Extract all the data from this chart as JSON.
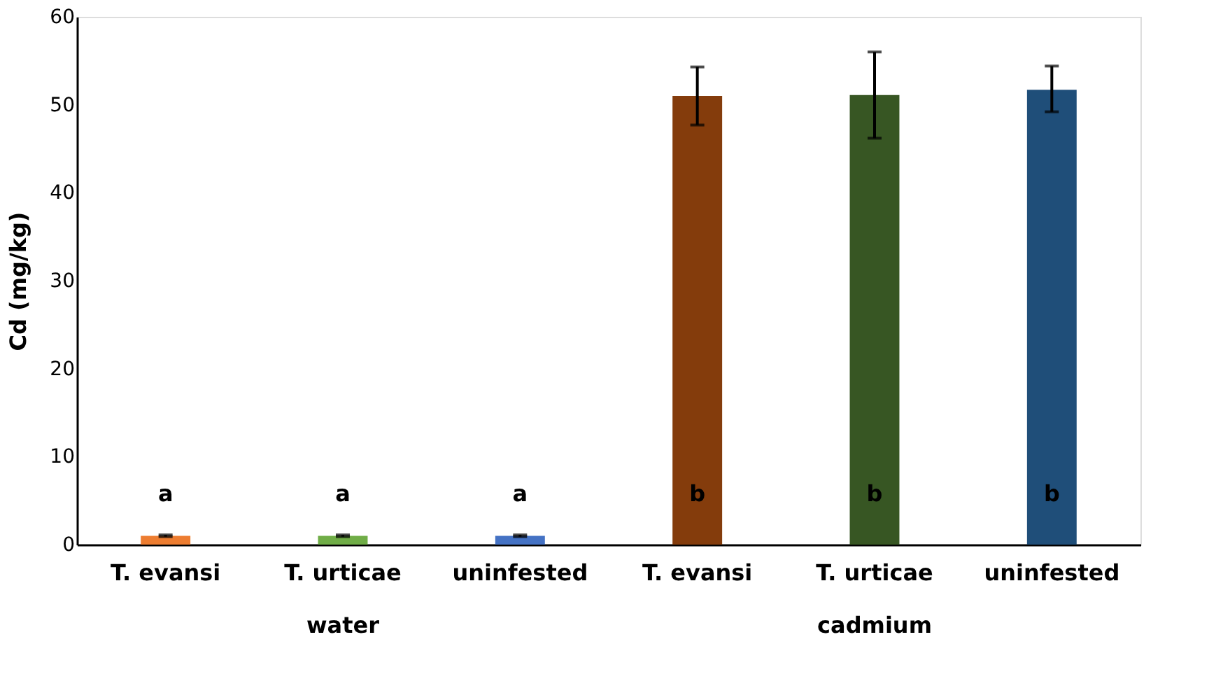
{
  "chart_data": {
    "type": "bar",
    "ylabel": "Cd (mg/kg)",
    "categories": [
      "T. evansi",
      "T. urticae",
      "uninfested",
      "T. evansi",
      "T. urticae",
      "uninfested"
    ],
    "values": [
      1.0,
      1.0,
      1.0,
      51.0,
      51.1,
      51.7
    ],
    "errors": [
      0.1,
      0.1,
      0.1,
      [
        47.7,
        54.3
      ],
      [
        46.2,
        56.0
      ],
      [
        49.2,
        54.4
      ]
    ],
    "colors": [
      "#ed7d31",
      "#70ad47",
      "#4472c4",
      "#843c0c",
      "#375623",
      "#1f4e79"
    ],
    "ylim": [
      0,
      60
    ],
    "yticks": [
      0,
      10,
      20,
      30,
      40,
      50,
      60
    ],
    "grid": false,
    "annotations": [
      "a",
      "a",
      "a",
      "b",
      "b",
      "b",
      "water",
      "cadmium"
    ]
  }
}
